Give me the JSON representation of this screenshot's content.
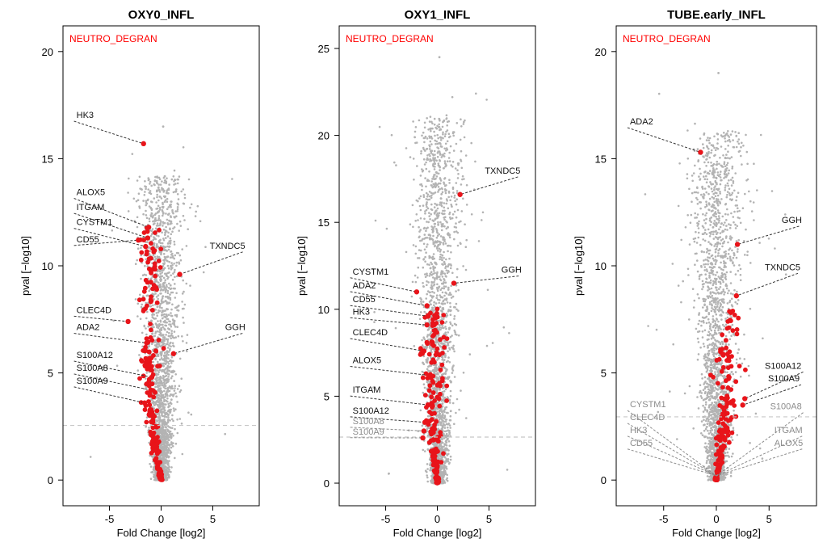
{
  "colors": {
    "background": "#ffffff",
    "axis": "#000000",
    "gene_points": "#b3b3b3",
    "highlighted_points": "#e8141a",
    "set_label": "#ff0000",
    "threshold_line": "#c8c8c8",
    "leader_line": "#333333",
    "label_black": "#111111",
    "label_grey": "#8c8c8c"
  },
  "chart_data": [
    {
      "type": "scatter",
      "title": "OXY0_INFL",
      "xlabel": "Fold Change [log2]",
      "ylabel": "pval [−log10]",
      "xlim": [
        -9.5,
        9.5
      ],
      "ylim": [
        -1.2,
        21.2
      ],
      "xticks": [
        -5,
        0,
        5
      ],
      "yticks": [
        0,
        5,
        10,
        15,
        20
      ],
      "grid": false,
      "gene_set_label": "NEUTRO_DEGRAN",
      "threshold_y": 2.55,
      "background_cloud": {
        "left_width": 1.8,
        "right_width": 1.9,
        "peak_y": 16.5,
        "n": 2600,
        "outliers": 40
      },
      "highlight_cloud": {
        "x_center": -1.1,
        "x_spread": 1.0,
        "y_max": 11.8,
        "n": 190
      },
      "labeled_genes": [
        {
          "gene": "HK3",
          "x": -1.7,
          "y": 15.7,
          "label_x": -8.2,
          "label_y": 16.9,
          "color": "black"
        },
        {
          "gene": "ALOX5",
          "x": -1.2,
          "y": 11.8,
          "label_x": -8.2,
          "label_y": 13.3,
          "color": "black"
        },
        {
          "gene": "ITGAM",
          "x": -1.3,
          "y": 11.3,
          "label_x": -8.2,
          "label_y": 12.6,
          "color": "black"
        },
        {
          "gene": "CYSTM1",
          "x": -1.5,
          "y": 10.9,
          "label_x": -8.2,
          "label_y": 11.9,
          "color": "black"
        },
        {
          "gene": "CD55",
          "x": -2.2,
          "y": 11.2,
          "label_x": -8.2,
          "label_y": 11.1,
          "color": "black"
        },
        {
          "gene": "TXNDC5",
          "x": 1.8,
          "y": 9.6,
          "label_x": 4.7,
          "label_y": 10.8,
          "color": "black"
        },
        {
          "gene": "CLEC4D",
          "x": -3.2,
          "y": 7.4,
          "label_x": -8.2,
          "label_y": 7.8,
          "color": "black"
        },
        {
          "gene": "ADA2",
          "x": -1.4,
          "y": 6.4,
          "label_x": -8.2,
          "label_y": 7.0,
          "color": "black"
        },
        {
          "gene": "GGH",
          "x": 1.2,
          "y": 5.9,
          "label_x": 6.2,
          "label_y": 7.0,
          "color": "black"
        },
        {
          "gene": "S100A12",
          "x": -0.9,
          "y": 4.8,
          "label_x": -8.2,
          "label_y": 5.7,
          "color": "black"
        },
        {
          "gene": "S100A8",
          "x": -1.0,
          "y": 4.2,
          "label_x": -8.2,
          "label_y": 5.1,
          "color": "black"
        },
        {
          "gene": "S100A9",
          "x": -1.6,
          "y": 3.6,
          "label_x": -8.2,
          "label_y": 4.5,
          "color": "black"
        }
      ]
    },
    {
      "type": "scatter",
      "title": "OXY1_INFL",
      "xlabel": "Fold Change [log2]",
      "ylabel": "pval [−log10]",
      "xlim": [
        -9.5,
        9.5
      ],
      "ylim": [
        -1.3,
        26.3
      ],
      "xticks": [
        -5,
        0,
        5
      ],
      "yticks": [
        0,
        5,
        10,
        15,
        20,
        25
      ],
      "grid": false,
      "gene_set_label": "NEUTRO_DEGRAN",
      "threshold_y": 2.65,
      "background_cloud": {
        "left_width": 1.9,
        "right_width": 2.3,
        "peak_y": 24.5,
        "n": 2600,
        "outliers": 40
      },
      "highlight_cloud": {
        "x_center": -0.4,
        "x_spread": 1.1,
        "y_max": 10.2,
        "n": 170
      },
      "labeled_genes": [
        {
          "gene": "TXNDC5",
          "x": 2.2,
          "y": 16.6,
          "label_x": 4.6,
          "label_y": 17.8,
          "color": "black"
        },
        {
          "gene": "GGH",
          "x": 1.6,
          "y": 11.5,
          "label_x": 6.2,
          "label_y": 12.1,
          "color": "black"
        },
        {
          "gene": "CYSTM1",
          "x": -2.0,
          "y": 11.0,
          "label_x": -8.2,
          "label_y": 12.0,
          "color": "black"
        },
        {
          "gene": "ADA2",
          "x": -1.0,
          "y": 10.2,
          "label_x": -8.2,
          "label_y": 11.2,
          "color": "black"
        },
        {
          "gene": "CD55",
          "x": -0.9,
          "y": 9.6,
          "label_x": -8.2,
          "label_y": 10.4,
          "color": "black"
        },
        {
          "gene": "HK3",
          "x": -1.0,
          "y": 9.1,
          "label_x": -8.2,
          "label_y": 9.7,
          "color": "black"
        },
        {
          "gene": "CLEC4D",
          "x": -1.3,
          "y": 7.6,
          "label_x": -8.2,
          "label_y": 8.5,
          "color": "black"
        },
        {
          "gene": "ALOX5",
          "x": -0.8,
          "y": 6.2,
          "label_x": -8.2,
          "label_y": 6.9,
          "color": "black"
        },
        {
          "gene": "ITGAM",
          "x": -0.9,
          "y": 4.5,
          "label_x": -8.2,
          "label_y": 5.2,
          "color": "black"
        },
        {
          "gene": "S100A12",
          "x": -1.2,
          "y": 3.5,
          "label_x": -8.2,
          "label_y": 4.0,
          "color": "black"
        },
        {
          "gene": "S100A8",
          "x": -1.3,
          "y": 3.0,
          "label_x": -8.2,
          "label_y": 3.4,
          "color": "grey"
        },
        {
          "gene": "S100A9",
          "x": -1.4,
          "y": 2.6,
          "label_x": -8.2,
          "label_y": 2.8,
          "color": "grey"
        }
      ]
    },
    {
      "type": "scatter",
      "title": "TUBE.early_INFL",
      "xlabel": "Fold Change [log2]",
      "ylabel": "pval [−log10]",
      "xlim": [
        -9.5,
        9.5
      ],
      "ylim": [
        -1.2,
        21.2
      ],
      "xticks": [
        -5,
        0,
        5
      ],
      "yticks": [
        0,
        5,
        10,
        15,
        20
      ],
      "grid": false,
      "gene_set_label": "NEUTRO_DEGRAN",
      "threshold_y": 2.95,
      "background_cloud": {
        "left_width": 2.2,
        "right_width": 2.6,
        "peak_y": 19.0,
        "n": 2400,
        "outliers": 45
      },
      "highlight_cloud": {
        "x_center": 1.0,
        "x_spread": 1.3,
        "y_max": 8.0,
        "n": 150
      },
      "labeled_genes": [
        {
          "gene": "ADA2",
          "x": -1.5,
          "y": 15.3,
          "label_x": -8.2,
          "label_y": 16.6,
          "color": "black"
        },
        {
          "gene": "GGH",
          "x": 2.0,
          "y": 11.0,
          "label_x": 6.2,
          "label_y": 12.0,
          "color": "black"
        },
        {
          "gene": "TXNDC5",
          "x": 1.9,
          "y": 8.6,
          "label_x": 4.6,
          "label_y": 9.8,
          "color": "black"
        },
        {
          "gene": "S100A12",
          "x": 2.7,
          "y": 3.8,
          "label_x": 4.6,
          "label_y": 5.2,
          "color": "black"
        },
        {
          "gene": "S100A9",
          "x": 2.5,
          "y": 3.5,
          "label_x": 4.9,
          "label_y": 4.6,
          "color": "black"
        },
        {
          "gene": "S100A8",
          "x": 0.0,
          "y": 0.2,
          "label_x": 5.1,
          "label_y": 3.3,
          "color": "grey"
        },
        {
          "gene": "CYSTM1",
          "x": 0.0,
          "y": 0.2,
          "label_x": -8.2,
          "label_y": 3.4,
          "color": "grey"
        },
        {
          "gene": "CLEC4D",
          "x": 0.0,
          "y": 0.2,
          "label_x": -8.2,
          "label_y": 2.8,
          "color": "grey"
        },
        {
          "gene": "HK3",
          "x": 0.0,
          "y": 0.2,
          "label_x": -8.2,
          "label_y": 2.2,
          "color": "grey"
        },
        {
          "gene": "ITGAM",
          "x": 0.0,
          "y": 0.2,
          "label_x": 5.5,
          "label_y": 2.2,
          "color": "grey"
        },
        {
          "gene": "CD55",
          "x": 0.0,
          "y": 0.2,
          "label_x": -8.2,
          "label_y": 1.6,
          "color": "grey"
        },
        {
          "gene": "ALOX5",
          "x": 0.0,
          "y": 0.2,
          "label_x": 5.5,
          "label_y": 1.6,
          "color": "grey"
        }
      ]
    }
  ]
}
